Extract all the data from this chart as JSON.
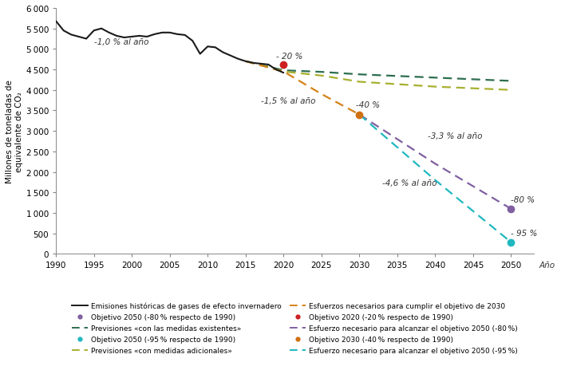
{
  "ylabel": "Millones de toneladas de\nequivalente de CO₂",
  "xlabel": "Año",
  "ylim": [
    0,
    6000
  ],
  "xlim": [
    1990,
    2053
  ],
  "yticks": [
    0,
    500,
    1000,
    1500,
    2000,
    2500,
    3000,
    3500,
    4000,
    4500,
    5000,
    5500,
    6000
  ],
  "xticks": [
    1990,
    1995,
    2000,
    2005,
    2010,
    2015,
    2020,
    2025,
    2030,
    2035,
    2040,
    2045,
    2050
  ],
  "historical_years": [
    1990,
    1991,
    1992,
    1993,
    1994,
    1995,
    1996,
    1997,
    1998,
    1999,
    2000,
    2001,
    2002,
    2003,
    2004,
    2005,
    2006,
    2007,
    2008,
    2009,
    2010,
    2011,
    2012,
    2013,
    2014,
    2015,
    2016,
    2017,
    2018,
    2019,
    2020
  ],
  "historical_values": [
    5680,
    5450,
    5350,
    5300,
    5250,
    5450,
    5500,
    5400,
    5320,
    5280,
    5300,
    5320,
    5300,
    5360,
    5400,
    5400,
    5360,
    5340,
    5200,
    4880,
    5060,
    5040,
    4920,
    4840,
    4760,
    4700,
    4660,
    4640,
    4620,
    4500,
    4420
  ],
  "proj_existing_years": [
    2015,
    2020,
    2025,
    2030,
    2035,
    2040,
    2045,
    2050
  ],
  "proj_existing_values": [
    4700,
    4480,
    4440,
    4380,
    4340,
    4300,
    4260,
    4220
  ],
  "proj_additional_years": [
    2015,
    2020,
    2025,
    2030,
    2035,
    2040,
    2045,
    2050
  ],
  "proj_additional_values": [
    4700,
    4450,
    4350,
    4200,
    4140,
    4080,
    4040,
    4000
  ],
  "effort_2030_years": [
    2015,
    2020,
    2025,
    2030
  ],
  "effort_2030_values": [
    4700,
    4450,
    3900,
    3400
  ],
  "effort_80_years": [
    2030,
    2040,
    2050
  ],
  "effort_80_values": [
    3400,
    2200,
    1100
  ],
  "effort_95_years": [
    2030,
    2040,
    2050
  ],
  "effort_95_values": [
    3400,
    1800,
    285
  ],
  "obj_2020_year": 2020,
  "obj_2020_value": 4620,
  "obj_2030_year": 2030,
  "obj_2030_value": 3400,
  "obj_2050_80_year": 2050,
  "obj_2050_80_value": 1100,
  "obj_2050_95_year": 2050,
  "obj_2050_95_value": 285,
  "color_historical": "#1a1a1a",
  "color_existing": "#2d6e4e",
  "color_additional": "#a8b030",
  "color_effort_2030": "#d4821a",
  "color_effort_80": "#8060a0",
  "color_effort_95": "#20b8c0",
  "color_obj_2020": "#cc2020",
  "color_obj_2030": "#d07010",
  "color_obj_2050_80": "#8060a0",
  "color_obj_2050_95": "#20b8c0",
  "ann_rate1_text": "-1,0 % al año",
  "ann_rate1_x": 1995,
  "ann_rate1_y": 5120,
  "ann_rate2_text": "-1,5 % al año",
  "ann_rate2_x": 2017,
  "ann_rate2_y": 3680,
  "ann_rate3_text": "-3,3 % al año",
  "ann_rate3_x": 2039,
  "ann_rate3_y": 2820,
  "ann_rate4_text": "-4,6 % al año",
  "ann_rate4_x": 2033,
  "ann_rate4_y": 1680,
  "ann_20_text": "- 20 %",
  "ann_20_x": 2019,
  "ann_20_y": 4780,
  "ann_40_text": "-40 %",
  "ann_40_x": 2029.5,
  "ann_40_y": 3580,
  "ann_80_text": "-80 %",
  "ann_80_x": 2050,
  "ann_80_y": 1280,
  "ann_95_text": "- 95 %",
  "ann_95_x": 2050,
  "ann_95_y": 460,
  "legend_col1": [
    {
      "label": "Emisiones históricas de gases de efecto invernadero",
      "color": "#1a1a1a",
      "type": "line",
      "ls": "-"
    },
    {
      "label": "Previsiones «con las medidas existentes»",
      "color": "#2d6e4e",
      "type": "line",
      "ls": "--"
    },
    {
      "label": "Previsiones «con medidas adicionales»",
      "color": "#a8b030",
      "type": "line",
      "ls": "--"
    },
    {
      "label": "Objetivo 2020 (-20 % respecto de 1990)",
      "color": "#cc2020",
      "type": "dot"
    },
    {
      "label": "Objetivo 2030 (-40 % respecto de 1990)",
      "color": "#d07010",
      "type": "dot"
    }
  ],
  "legend_col2": [
    {
      "label": "Objetivo 2050 (-80 % respecto de 1990)",
      "color": "#8060a0",
      "type": "dot"
    },
    {
      "label": "Objetivo 2050 (-95 % respecto de 1990)",
      "color": "#20b8c0",
      "type": "dot"
    },
    {
      "label": "Esfuerzos necesarios para cumplir el objetivo de 2030",
      "color": "#d4821a",
      "type": "line",
      "ls": "--"
    },
    {
      "label": "Esfuerzo necesario para alcanzar el objetivo 2050 (-80 %)",
      "color": "#8060a0",
      "type": "line",
      "ls": "--"
    },
    {
      "label": "Esfuerzo necesario para alcanzar el objetivo 2050 (-95 %)",
      "color": "#20b8c0",
      "type": "line",
      "ls": "--"
    }
  ]
}
